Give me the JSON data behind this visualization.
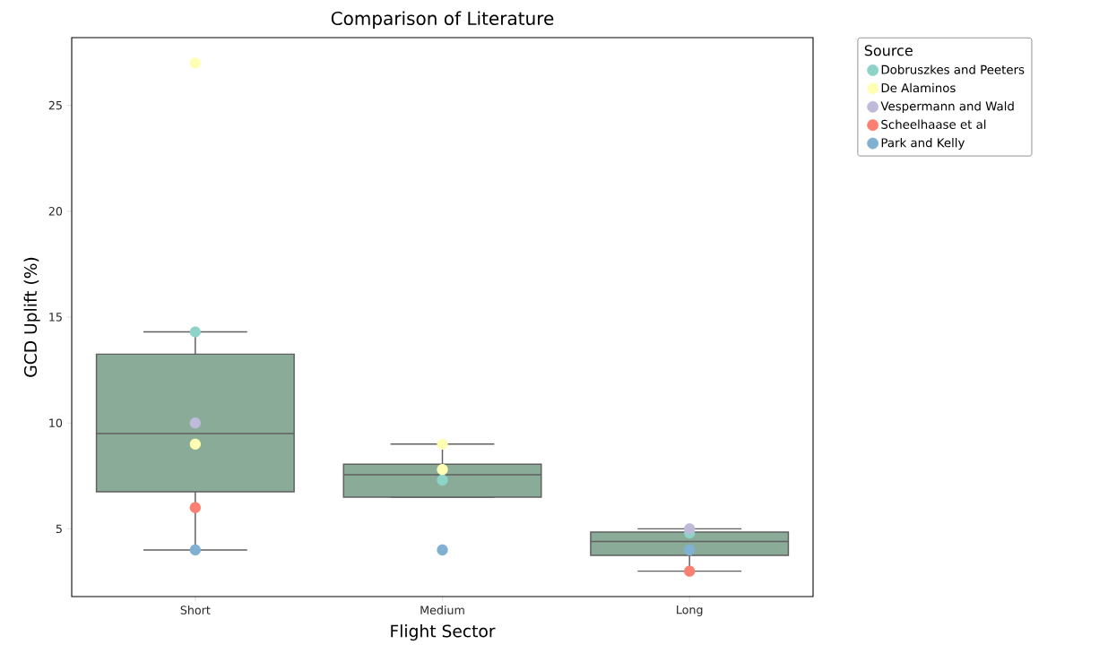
{
  "chart_data": {
    "type": "box",
    "title": "Comparison of Literature",
    "xlabel": "Flight Sector",
    "ylabel": "GCD Uplift (%)",
    "legend_title": "Source",
    "legend": "top right",
    "marker": "circle",
    "categories": [
      "Short",
      "Medium",
      "Long"
    ],
    "ylim": [
      1.8,
      28.2
    ],
    "yticks": [
      5,
      10,
      15,
      20,
      25
    ],
    "series": [
      {
        "type": "box",
        "color": "#8aab98",
        "boxes": [
          {
            "low": 4.0,
            "q1": 6.75,
            "median": 9.5,
            "q3": 13.25,
            "high": 14.3
          },
          {
            "low": 6.5,
            "q1": 6.5,
            "median": 7.55,
            "q3": 8.05,
            "high": 9.0
          },
          {
            "low": 3.0,
            "q1": 3.75,
            "median": 4.4,
            "q3": 4.85,
            "high": 5.0
          }
        ]
      },
      {
        "type": "scatter",
        "name": "Dobruszkes and Peeters",
        "color": "#8dd3c7",
        "x": [
          "Short",
          "Medium",
          "Long"
        ],
        "values": [
          14.3,
          7.3,
          4.8
        ]
      },
      {
        "type": "scatter",
        "name": "De Alaminos",
        "color": "#ffffb3",
        "x": [
          "Short",
          "Short",
          "Medium",
          "Medium"
        ],
        "values": [
          27.0,
          9.0,
          9.0,
          7.8
        ]
      },
      {
        "type": "scatter",
        "name": "Vespermann and Wald",
        "color": "#bebada",
        "x": [
          "Short",
          "Long"
        ],
        "values": [
          10.0,
          5.0
        ]
      },
      {
        "type": "scatter",
        "name": "Scheelhaase et al",
        "color": "#fb8072",
        "x": [
          "Short",
          "Long"
        ],
        "values": [
          6.0,
          3.0
        ]
      },
      {
        "type": "scatter",
        "name": "Park and Kelly",
        "color": "#80b1d3",
        "x": [
          "Short",
          "Medium",
          "Long"
        ],
        "values": [
          4.0,
          4.0,
          4.0
        ]
      }
    ]
  }
}
